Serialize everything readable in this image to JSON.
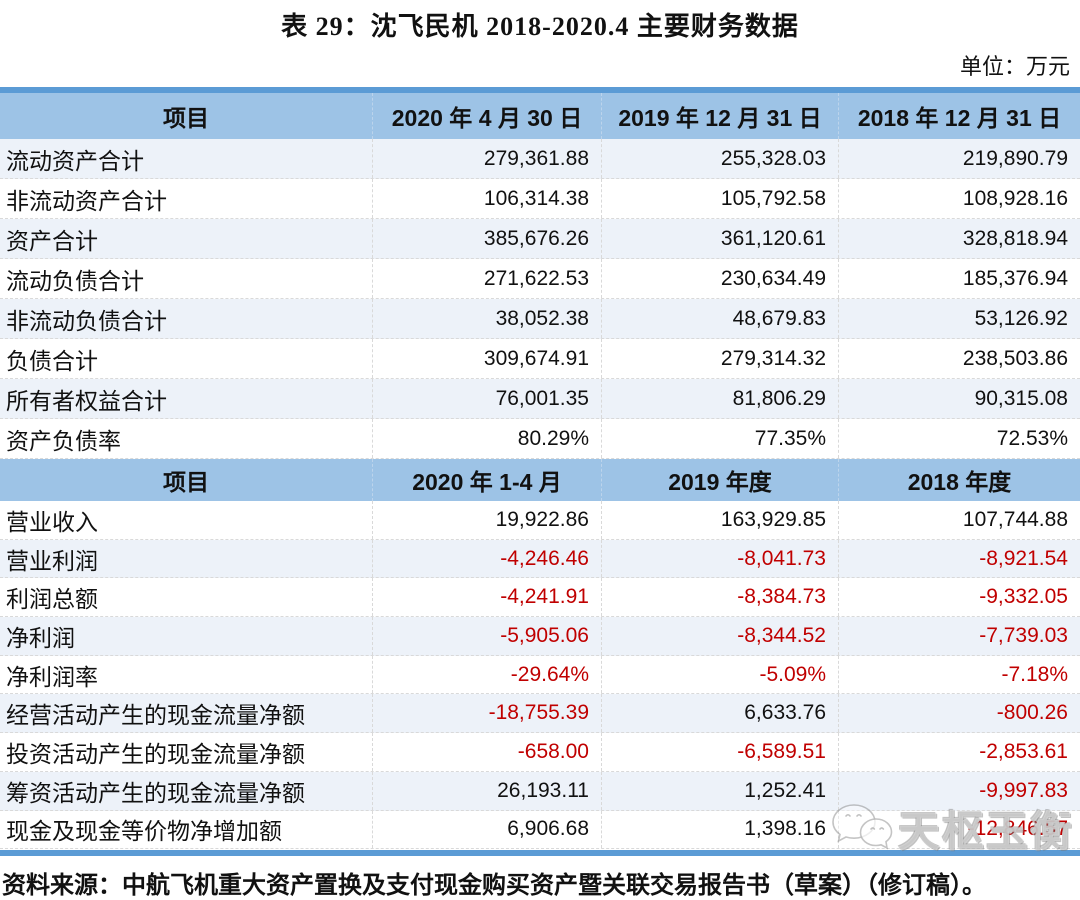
{
  "page": {
    "title": "表 29：沈飞民机 2018-2020.4 主要财务数据",
    "unit_label": "单位：万元",
    "source_note": "资料来源：中航飞机重大资产置换及支付现金购买资产暨关联交易报告书（草案）（修订稿）。",
    "watermark_text": "天枢玉衡",
    "watermark_icon": "wechat-icon"
  },
  "colors": {
    "header_bar": "#5B9BD5",
    "header_bg": "#9DC3E6",
    "band_bg": "#EDF2F9",
    "negative_value": "#C00000",
    "bottom_bar": "#5B9BD5"
  },
  "table": {
    "sections": [
      {
        "header": [
          "项目",
          "2020 年 4 月 30 日",
          "2019 年 12 月 31 日",
          "2018 年 12 月 31 日"
        ],
        "rows": [
          {
            "label": "流动资产合计",
            "values": [
              "279,361.88",
              "255,328.03",
              "219,890.79"
            ]
          },
          {
            "label": "非流动资产合计",
            "values": [
              "106,314.38",
              "105,792.58",
              "108,928.16"
            ]
          },
          {
            "label": "资产合计",
            "values": [
              "385,676.26",
              "361,120.61",
              "328,818.94"
            ]
          },
          {
            "label": "流动负债合计",
            "values": [
              "271,622.53",
              "230,634.49",
              "185,376.94"
            ]
          },
          {
            "label": "非流动负债合计",
            "values": [
              "38,052.38",
              "48,679.83",
              "53,126.92"
            ]
          },
          {
            "label": "负债合计",
            "values": [
              "309,674.91",
              "279,314.32",
              "238,503.86"
            ]
          },
          {
            "label": "所有者权益合计",
            "values": [
              "76,001.35",
              "81,806.29",
              "90,315.08"
            ]
          },
          {
            "label": "资产负债率",
            "values": [
              "80.29%",
              "77.35%",
              "72.53%"
            ]
          }
        ]
      },
      {
        "header": [
          "项目",
          "2020 年 1-4 月",
          "2019 年度",
          "2018 年度"
        ],
        "rows": [
          {
            "label": "营业收入",
            "values": [
              "19,922.86",
              "163,929.85",
              "107,744.88"
            ]
          },
          {
            "label": "营业利润",
            "values": [
              "-4,246.46",
              "-8,041.73",
              "-8,921.54"
            ]
          },
          {
            "label": "利润总额",
            "values": [
              "-4,241.91",
              "-8,384.73",
              "-9,332.05"
            ]
          },
          {
            "label": "净利润",
            "values": [
              "-5,905.06",
              "-8,344.52",
              "-7,739.03"
            ]
          },
          {
            "label": "净利润率",
            "values": [
              "-29.64%",
              "-5.09%",
              "-7.18%"
            ]
          },
          {
            "label": "经营活动产生的现金流量净额",
            "values": [
              "-18,755.39",
              "6,633.76",
              "-800.26"
            ]
          },
          {
            "label": "投资活动产生的现金流量净额",
            "values": [
              "-658.00",
              "-6,589.51",
              "-2,853.61"
            ]
          },
          {
            "label": "筹资活动产生的现金流量净额",
            "values": [
              "26,193.11",
              "1,252.41",
              "-9,997.83"
            ]
          },
          {
            "label": "现金及现金等价物净增加额",
            "values": [
              "6,906.68",
              "1,398.16",
              "-12,846.57"
            ]
          }
        ]
      }
    ]
  }
}
